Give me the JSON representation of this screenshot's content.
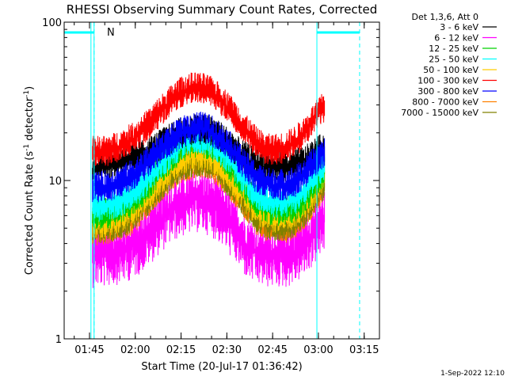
{
  "chart_data": {
    "type": "line",
    "title": "RHESSI Observing Summary Count Rates, Corrected",
    "xlabel": "Start Time (20-Jul-17 01:36:42)",
    "ylabel": "Corrected Count Rate (s",
    "ylabel_sup": "-1",
    "ylabel_mid": " detector",
    "ylabel_sup2": "-1",
    "ylabel_end": ")",
    "y_scale": "log",
    "ylim": [
      1,
      100
    ],
    "y_ticks": [
      "1",
      "10",
      "100"
    ],
    "x_ticks": [
      "01:45",
      "02:00",
      "02:15",
      "02:30",
      "02:45",
      "03:00",
      "03:15"
    ],
    "x_tick_minutes": [
      105,
      120,
      135,
      150,
      165,
      180,
      195
    ],
    "xlim_minutes": [
      96.7,
      200
    ],
    "data_start_minute": 106,
    "data_end_minute": 182,
    "annotation_n": "N",
    "night_intervals_minutes": [
      [
        96.7,
        106.5
      ],
      [
        179.5,
        193.5
      ]
    ],
    "legend_header": "Det 1,3,6, Att 0",
    "series": [
      {
        "name": "3 - 6 keV",
        "color": "#000000",
        "values": [
          12,
          12,
          12.5,
          13,
          13.5,
          14,
          15,
          16.5,
          18,
          19.5,
          20.5,
          21,
          20.5,
          19,
          17,
          15,
          13.5,
          12.5,
          12,
          12,
          12,
          12.5,
          13,
          14.5,
          16
        ]
      },
      {
        "name": "6 - 12 keV",
        "color": "#ff00ff",
        "values": [
          3.4,
          3.4,
          3.5,
          3.6,
          3.8,
          4.2,
          4.8,
          5.6,
          6.4,
          7.0,
          7.4,
          7.6,
          7.3,
          6.6,
          5.6,
          4.6,
          3.8,
          3.5,
          3.4,
          3.4,
          3.4,
          3.6,
          4.0,
          4.8,
          5.6
        ]
      },
      {
        "name": "12 - 25 keV",
        "color": "#00d000",
        "values": [
          6.0,
          6.0,
          6.2,
          6.6,
          7.2,
          8.2,
          9.6,
          11.5,
          13.5,
          15.5,
          17,
          17.5,
          16.8,
          15,
          12.8,
          10.5,
          8.6,
          7.2,
          6.6,
          6.4,
          6.4,
          6.8,
          7.6,
          9.4,
          11.5
        ]
      },
      {
        "name": "25 - 50 keV",
        "color": "#00ffff",
        "values": [
          6.8,
          6.8,
          7.0,
          7.4,
          8.0,
          9.0,
          10.5,
          12.5,
          14.5,
          16.5,
          18,
          18.5,
          17.8,
          16,
          13.8,
          11.5,
          9.5,
          8.0,
          7.4,
          7.2,
          7.2,
          7.6,
          8.5,
          10.5,
          12.5
        ]
      },
      {
        "name": "50 - 100 keV",
        "color": "#ffcc00",
        "values": [
          5.4,
          5.4,
          5.6,
          5.9,
          6.4,
          7.2,
          8.4,
          10,
          11.6,
          13,
          14,
          14.5,
          14,
          12.6,
          10.8,
          9.0,
          7.5,
          6.4,
          5.9,
          5.8,
          5.8,
          6.2,
          7.0,
          8.6,
          10.5
        ]
      },
      {
        "name": "100 - 300 keV",
        "color": "#ff0000",
        "values": [
          15,
          15,
          15.5,
          16.5,
          18,
          20,
          23,
          27,
          31,
          35,
          37.5,
          38,
          36.5,
          33,
          28.5,
          24,
          20,
          17,
          15.5,
          15.5,
          16,
          17.5,
          20,
          24.5,
          29
        ]
      },
      {
        "name": "300 - 800 keV",
        "color": "#0000ff",
        "values": [
          9.0,
          9.0,
          9.3,
          9.8,
          10.6,
          11.8,
          13.5,
          15.5,
          17.5,
          19.5,
          21,
          21.5,
          20.8,
          19,
          16.6,
          14,
          11.8,
          10.2,
          9.5,
          9.3,
          9.3,
          9.8,
          11,
          13,
          15
        ]
      },
      {
        "name": "800 - 7000 keV",
        "color": "#ff8000",
        "values": [
          4.8,
          4.8,
          5.0,
          5.2,
          5.6,
          6.3,
          7.4,
          8.8,
          10.2,
          11.5,
          12.5,
          13,
          12.5,
          11.2,
          9.6,
          8.0,
          6.6,
          5.6,
          5.1,
          5.0,
          5.0,
          5.4,
          6.2,
          7.6,
          9.2
        ]
      },
      {
        "name": "7000 - 15000 keV",
        "color": "#808000",
        "values": [
          5.0,
          5.0,
          5.1,
          5.4,
          5.8,
          6.5,
          7.6,
          9.0,
          10.5,
          11.8,
          12.8,
          13.2,
          12.7,
          11.4,
          9.8,
          8.2,
          6.8,
          5.8,
          5.3,
          5.1,
          5.1,
          5.5,
          6.3,
          7.8,
          9.4
        ]
      }
    ]
  },
  "timestamp": "1-Sep-2022 12:10"
}
